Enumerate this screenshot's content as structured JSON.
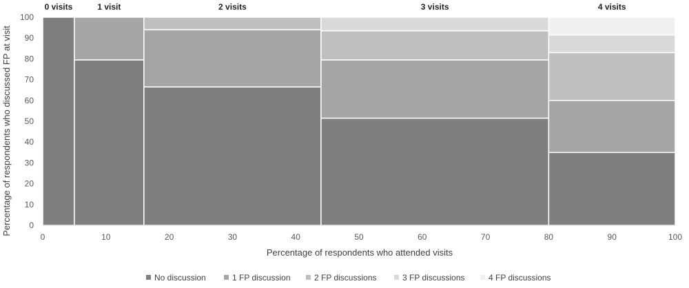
{
  "chart_data": {
    "type": "mosaic",
    "xlabel": "Percentage of respondents who attended visits",
    "ylabel": "Percentage of respondents who discussed FP at visit",
    "xlim": [
      0,
      100
    ],
    "ylim": [
      0,
      100
    ],
    "x_ticks": [
      0,
      10,
      20,
      30,
      40,
      50,
      60,
      70,
      80,
      90,
      100
    ],
    "y_ticks": [
      0,
      10,
      20,
      30,
      40,
      50,
      60,
      70,
      80,
      90,
      100
    ],
    "series": [
      {
        "name": "No discussion",
        "color": "#7f7f7f"
      },
      {
        "name": "1 FP discussion",
        "color": "#a5a5a5"
      },
      {
        "name": "2 FP discussions",
        "color": "#bfbfbf"
      },
      {
        "name": "3 FP discussions",
        "color": "#d9d9d9"
      },
      {
        "name": "4 FP discussions",
        "color": "#f0f0f0"
      }
    ],
    "groups": [
      {
        "label": "0 visits",
        "x_start": 0,
        "x_end": 5,
        "values": [
          100
        ]
      },
      {
        "label": "1 visit",
        "x_start": 5,
        "x_end": 16,
        "values": [
          79.5,
          20.5
        ]
      },
      {
        "label": "2 visits",
        "x_start": 16,
        "x_end": 44,
        "values": [
          66.5,
          27.5,
          6
        ]
      },
      {
        "label": "3 visits",
        "x_start": 44,
        "x_end": 80,
        "values": [
          51.5,
          28,
          14,
          6.5
        ]
      },
      {
        "label": "4 visits",
        "x_start": 80,
        "x_end": 100,
        "values": [
          35,
          25,
          23,
          8.5,
          8.5
        ]
      }
    ],
    "legend_position": "bottom",
    "grid": false
  }
}
